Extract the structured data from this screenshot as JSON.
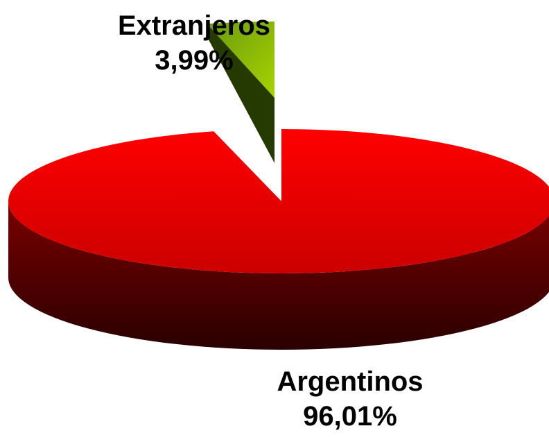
{
  "chart_data": {
    "type": "pie",
    "title": "",
    "categories": [
      "Argentinos",
      "Extranjeros"
    ],
    "values": [
      96.01,
      3.99
    ],
    "value_labels": [
      "96,01%",
      "3,99%"
    ],
    "exploded": [
      "Extranjeros"
    ],
    "three_d": true,
    "legend": "none",
    "colors": {
      "Argentinos": "#ff0000",
      "Extranjeros": "#99cc00"
    }
  }
}
